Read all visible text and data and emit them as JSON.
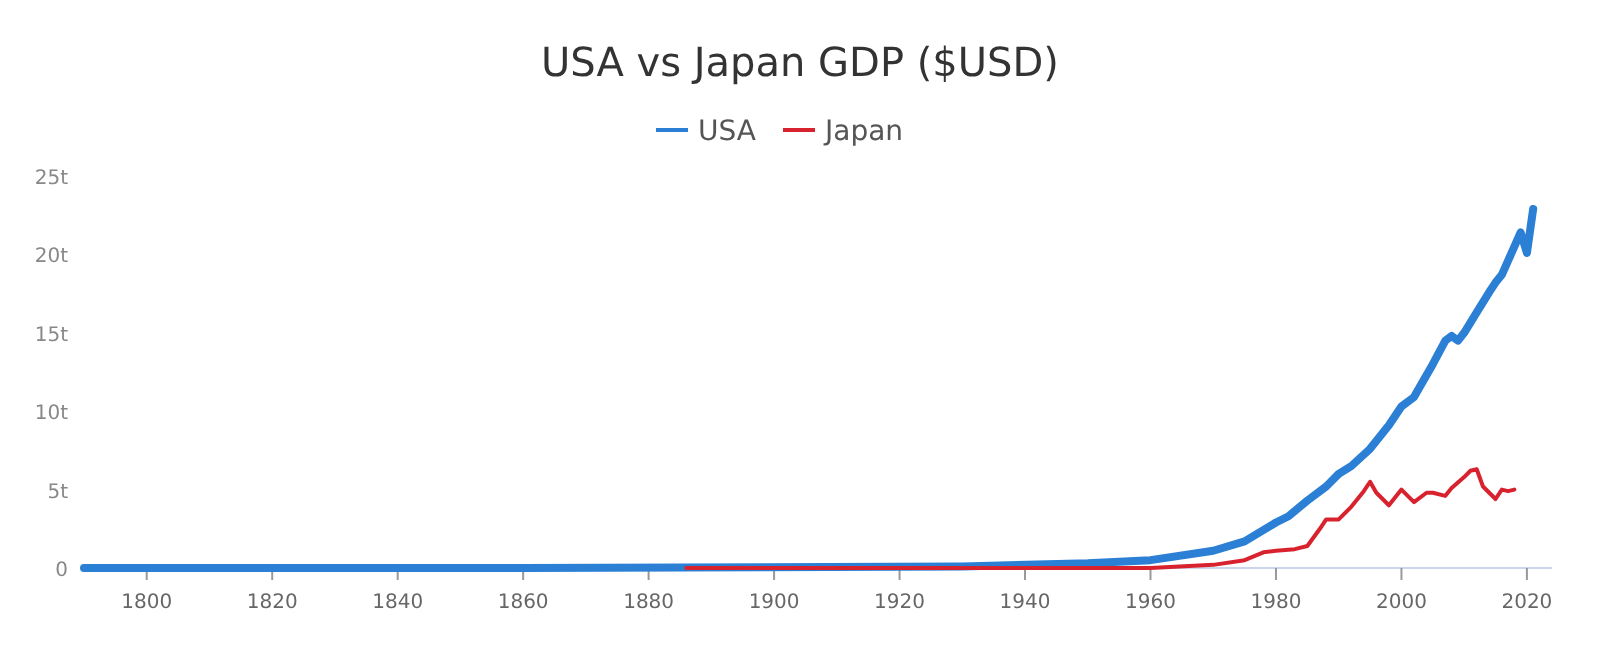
{
  "chart_data": {
    "type": "line",
    "title": "USA vs Japan GDP ($USD)",
    "legend": "top",
    "grid": false,
    "xlim": [
      1790,
      2024
    ],
    "xticks": [
      1800,
      1820,
      1840,
      1860,
      1880,
      1900,
      1920,
      1940,
      1960,
      1980,
      2000,
      2020
    ],
    "ylim": [
      0,
      25
    ],
    "yticks": [
      0,
      {
        "value": 5,
        "label": "5t"
      },
      {
        "value": 10,
        "label": "10t"
      },
      {
        "value": 15,
        "label": "15t"
      },
      {
        "value": 20,
        "label": "20t"
      },
      {
        "value": 25,
        "label": "25t"
      }
    ],
    "series": [
      {
        "name": "USA",
        "color": "#2b7fd4",
        "x": [
          1790,
          1860,
          1930,
          1950,
          1960,
          1970,
          1975,
          1980,
          1982,
          1985,
          1988,
          1990,
          1992,
          1995,
          1998,
          2000,
          2002,
          2005,
          2007,
          2008,
          2009,
          2010,
          2012,
          2014,
          2015,
          2016,
          2018,
          2019,
          2020,
          2021
        ],
        "values": [
          0,
          0,
          0.1,
          0.3,
          0.5,
          1.1,
          1.7,
          2.9,
          3.3,
          4.3,
          5.2,
          6.0,
          6.5,
          7.6,
          9.1,
          10.3,
          10.9,
          13.0,
          14.5,
          14.8,
          14.5,
          15.0,
          16.3,
          17.6,
          18.2,
          18.7,
          20.5,
          21.4,
          20.1,
          22.9
        ]
      },
      {
        "name": "Japan",
        "color": "#d8232f",
        "x": [
          1886,
          1960,
          1970,
          1975,
          1978,
          1980,
          1983,
          1985,
          1987,
          1988,
          1990,
          1992,
          1994,
          1995,
          1996,
          1998,
          2000,
          2002,
          2004,
          2005,
          2007,
          2008,
          2010,
          2011,
          2012,
          2013,
          2015,
          2016,
          2017,
          2018
        ],
        "values": [
          0,
          0,
          0.2,
          0.5,
          1.0,
          1.1,
          1.2,
          1.4,
          2.5,
          3.1,
          3.1,
          3.9,
          4.9,
          5.5,
          4.8,
          4.0,
          5.0,
          4.2,
          4.8,
          4.8,
          4.6,
          5.1,
          5.8,
          6.2,
          6.3,
          5.2,
          4.4,
          5.0,
          4.9,
          5.0
        ]
      }
    ]
  }
}
